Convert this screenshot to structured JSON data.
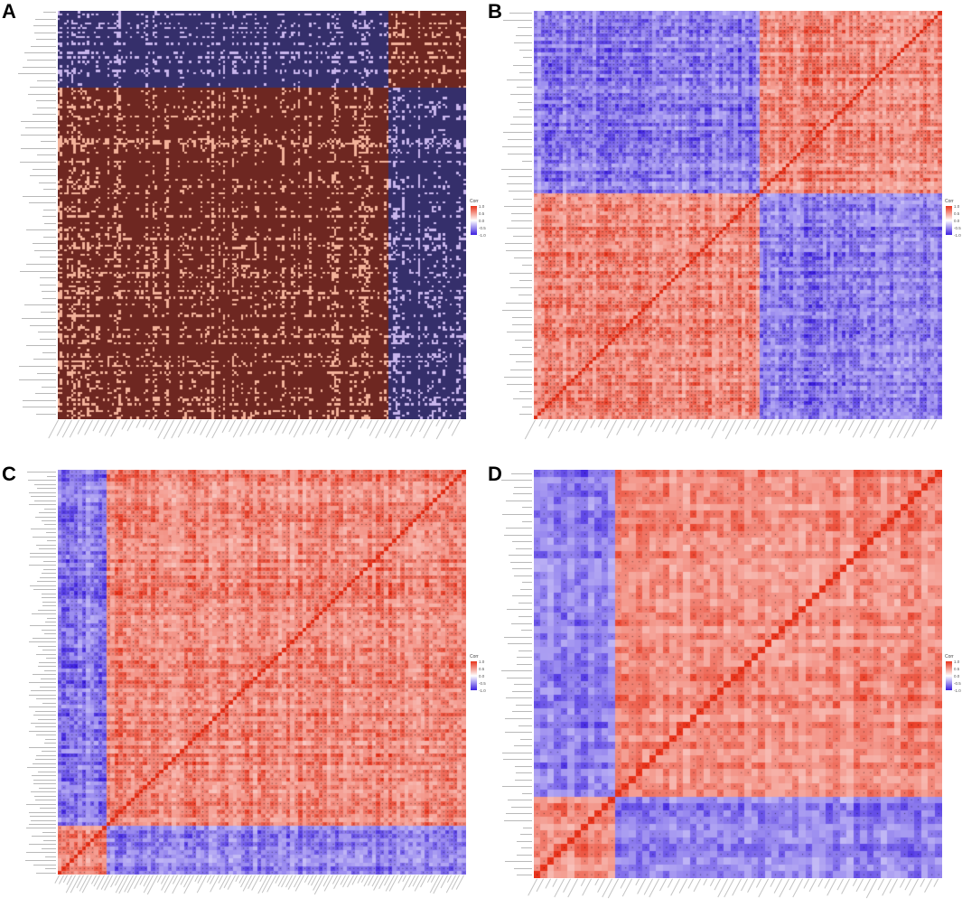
{
  "colors": {
    "A": {
      "pos": "#6e2721",
      "pos_light": "#f3b29a",
      "neg": "#352f6b",
      "neg_light": "#c8b5ec",
      "mid": "#ffffff"
    },
    "BCD": {
      "pos": "#e8331b",
      "neg": "#3b1ee0",
      "mid": "#ffffff"
    }
  },
  "chart_data": [
    {
      "panel": "A",
      "type": "heatmap",
      "legend": {
        "title": "Corr",
        "ticks": [
          "1.0",
          "0.5",
          "0.0",
          "-0.5",
          "-1.0"
        ],
        "placement": "right"
      },
      "clusters": [
        {
          "block": 1,
          "size_fraction": 0.81
        },
        {
          "block": 2,
          "size_fraction": 0.19
        }
      ],
      "within_cluster_corr": "positive",
      "between_cluster_corr": "negative"
    },
    {
      "panel": "B",
      "type": "heatmap",
      "legend": {
        "title": "Corr",
        "ticks": [
          "1.0",
          "0.5",
          "0.0",
          "-0.5",
          "-1.0"
        ],
        "placement": "right"
      },
      "clusters": [
        {
          "block": 1,
          "size_fraction": 0.55
        },
        {
          "block": 2,
          "size_fraction": 0.45
        }
      ],
      "within_cluster_corr": "positive",
      "between_cluster_corr": "negative"
    },
    {
      "panel": "C",
      "type": "heatmap",
      "legend": {
        "title": "Corr",
        "ticks": [
          "1.0",
          "0.5",
          "0.0",
          "-0.5",
          "-1.0"
        ],
        "placement": "right"
      },
      "clusters": [
        {
          "block": 1,
          "size_fraction": 0.12
        },
        {
          "block": 2,
          "size_fraction": 0.88
        }
      ],
      "within_cluster_corr": "positive",
      "between_cluster_corr": "negative"
    },
    {
      "panel": "D",
      "type": "heatmap",
      "legend": {
        "title": "Corr",
        "ticks": [
          "1.0",
          "0.5",
          "0.0",
          "-0.5",
          "-1.0"
        ],
        "placement": "right"
      },
      "clusters": [
        {
          "block": 1,
          "size_fraction": 0.2
        },
        {
          "block": 2,
          "size_fraction": 0.8
        }
      ],
      "within_cluster_corr": "positive",
      "between_cluster_corr": "negative"
    }
  ]
}
